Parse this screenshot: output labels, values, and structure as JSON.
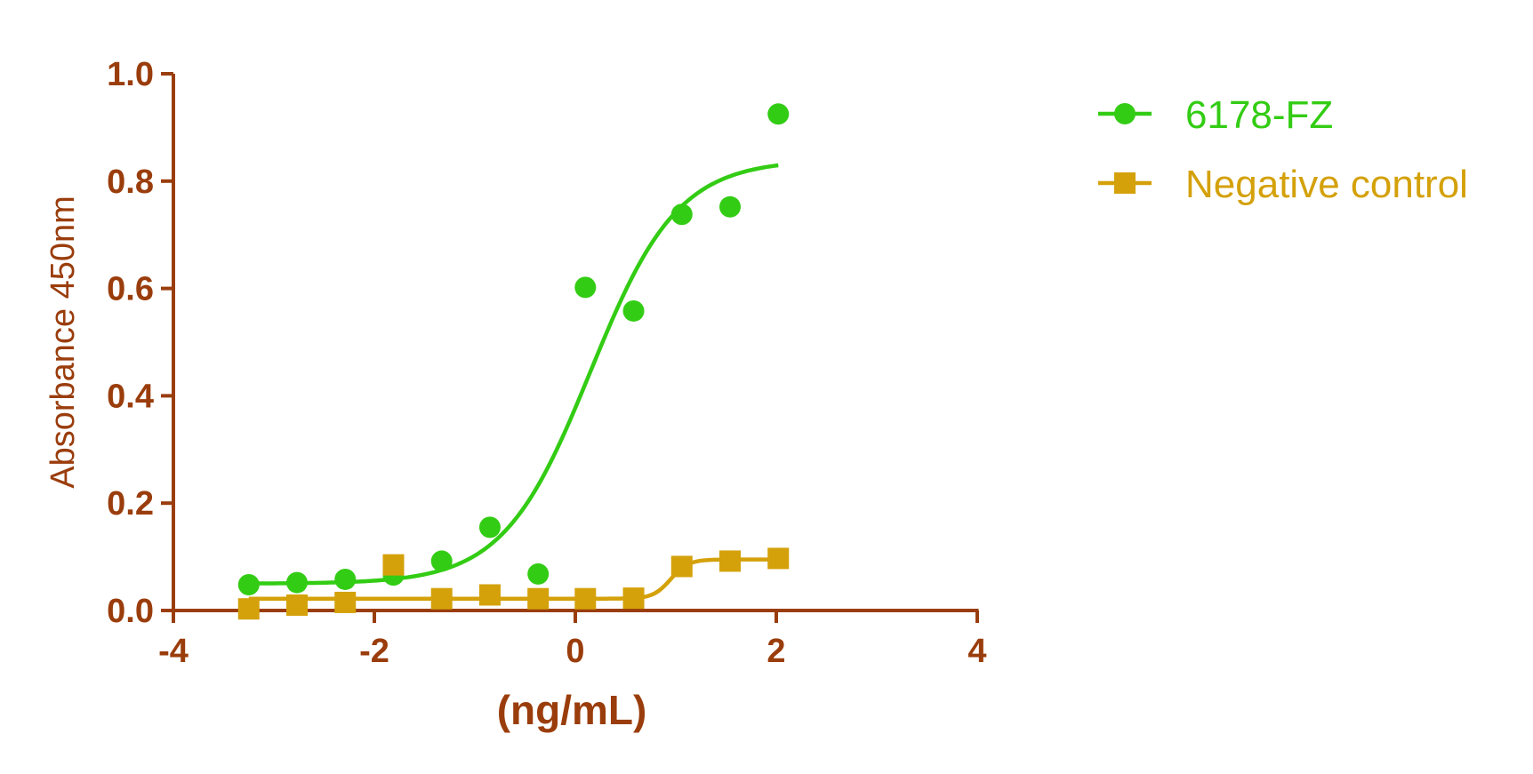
{
  "colors": {
    "axis": "#9a3d0c",
    "series_1": "#33cc14",
    "series_2": "#d4a10a",
    "background": "#ffffff"
  },
  "chart_data": {
    "type": "scatter",
    "title": "",
    "xlabel": "(ng/mL)",
    "ylabel": "Absorbance 450nm",
    "xlim": [
      -4,
      4
    ],
    "ylim": [
      0,
      1.0
    ],
    "x_ticks": [
      "-4",
      "-2",
      "0",
      "2",
      "4"
    ],
    "y_ticks": [
      "0.0",
      "0.2",
      "0.4",
      "0.6",
      "0.8",
      "1.0"
    ],
    "grid": false,
    "legend_position": "top-right",
    "series": [
      {
        "name": "6178-FZ",
        "marker": "circle",
        "color": "#33cc14",
        "points": [
          [
            -3.25,
            0.048
          ],
          [
            -2.77,
            0.052
          ],
          [
            -2.29,
            0.058
          ],
          [
            -1.81,
            0.066
          ],
          [
            -1.33,
            0.092
          ],
          [
            -0.85,
            0.155
          ],
          [
            -0.37,
            0.068
          ],
          [
            0.1,
            0.602
          ],
          [
            0.58,
            0.558
          ],
          [
            1.06,
            0.738
          ],
          [
            1.54,
            0.752
          ],
          [
            2.02,
            0.925
          ]
        ],
        "fit": {
          "model": "4PL",
          "x_range": [
            -3.25,
            2.02
          ],
          "params": {
            "bottom": 0.05,
            "top": 0.84,
            "logEC50": 0.15,
            "hill": 1.0
          }
        }
      },
      {
        "name": "Negative control",
        "marker": "square",
        "color": "#d4a10a",
        "points": [
          [
            -3.25,
            0.003
          ],
          [
            -2.77,
            0.01
          ],
          [
            -2.29,
            0.015
          ],
          [
            -1.81,
            0.085
          ],
          [
            -1.33,
            0.022
          ],
          [
            -0.85,
            0.029
          ],
          [
            -0.37,
            0.022
          ],
          [
            0.1,
            0.022
          ],
          [
            0.58,
            0.023
          ],
          [
            1.06,
            0.082
          ],
          [
            1.54,
            0.092
          ],
          [
            2.02,
            0.097
          ]
        ],
        "fit": {
          "model": "4PL",
          "x_range": [
            -3.25,
            2.02
          ],
          "params": {
            "bottom": 0.022,
            "top": 0.095,
            "logEC50": 0.95,
            "hill": 5.0
          }
        }
      }
    ]
  }
}
